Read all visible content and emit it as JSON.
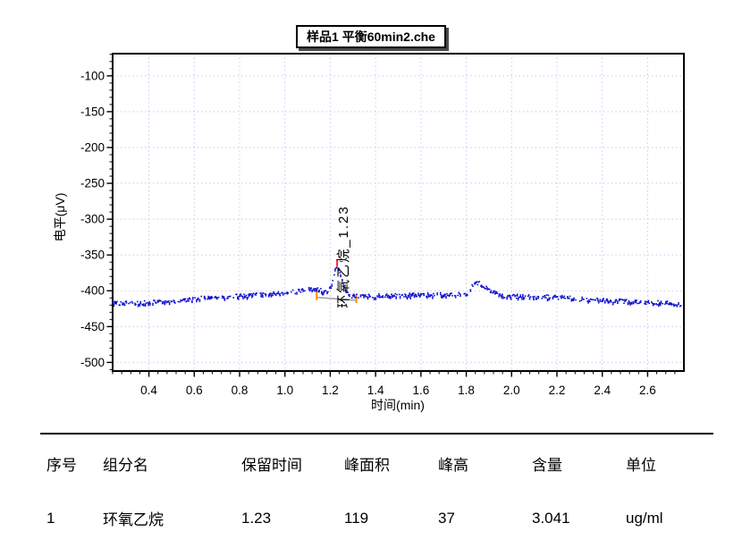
{
  "title_box": {
    "text": "样品1 平衡60min2.che"
  },
  "chart_data": {
    "type": "line",
    "title": "样品1 平衡60min2.che",
    "xlabel": "时间(min)",
    "ylabel": "电平(μV)",
    "xlim": [
      0.24,
      2.76
    ],
    "ylim": [
      -512,
      -69
    ],
    "x_ticks": [
      0.4,
      0.6,
      0.8,
      1.0,
      1.2,
      1.4,
      1.6,
      1.8,
      2.0,
      2.2,
      2.4,
      2.6
    ],
    "y_ticks": [
      -100,
      -150,
      -200,
      -250,
      -300,
      -350,
      -400,
      -450,
      -500
    ],
    "x_minor_step": 0.04,
    "y_minor_step": 10,
    "grid": true,
    "legend": "none",
    "colors": {
      "trace": "#0b0bd0",
      "grid": "#c9c9f2",
      "axis": "#000000",
      "apex_marker": "#ff0000",
      "bound_marker": "#ff8c00",
      "integration_baseline": "#aaaaaa"
    },
    "noise_uV": 6,
    "baseline_uV": [
      [
        0.24,
        -417
      ],
      [
        0.35,
        -418
      ],
      [
        0.45,
        -415
      ],
      [
        0.55,
        -414
      ],
      [
        0.62,
        -410
      ],
      [
        0.7,
        -409
      ],
      [
        0.8,
        -407
      ],
      [
        0.9,
        -406
      ],
      [
        1.0,
        -403
      ],
      [
        1.1,
        -402
      ],
      [
        1.2,
        -404
      ],
      [
        1.3,
        -408
      ],
      [
        1.45,
        -407
      ],
      [
        1.6,
        -406
      ],
      [
        1.75,
        -405
      ],
      [
        1.9,
        -407
      ],
      [
        2.05,
        -408
      ],
      [
        2.2,
        -409
      ],
      [
        2.35,
        -413
      ],
      [
        2.5,
        -415
      ],
      [
        2.65,
        -417
      ],
      [
        2.76,
        -419
      ]
    ],
    "peaks": [
      {
        "name": "环氧乙烷",
        "label": "环氧乙烷_1.23",
        "retention_time": 1.23,
        "height_uV": 37,
        "area": 119,
        "apex_uV": -367,
        "start_time": 1.14,
        "start_uV": -408,
        "end_time": 1.315,
        "end_uV": -412,
        "sigma_left": 0.016,
        "sigma_right": 0.022,
        "labeled": true
      },
      {
        "name": "",
        "label": "",
        "retention_time": 1.84,
        "height_uV": 18,
        "apex_uV": -388,
        "sigma_left": 0.018,
        "sigma_right": 0.05,
        "labeled": false
      },
      {
        "name": "",
        "label": "",
        "retention_time": 1.12,
        "height_uV": 5,
        "apex_uV": -398,
        "sigma_left": 0.045,
        "sigma_right": 0.045,
        "labeled": false
      }
    ]
  },
  "table": {
    "headers": [
      "序号",
      "组分名",
      "保留时间",
      "峰面积",
      "峰高",
      "含量",
      "单位"
    ],
    "rows": [
      [
        "1",
        "环氧乙烷",
        "1.23",
        "119",
        "37",
        "3.041",
        "ug/ml"
      ]
    ]
  }
}
